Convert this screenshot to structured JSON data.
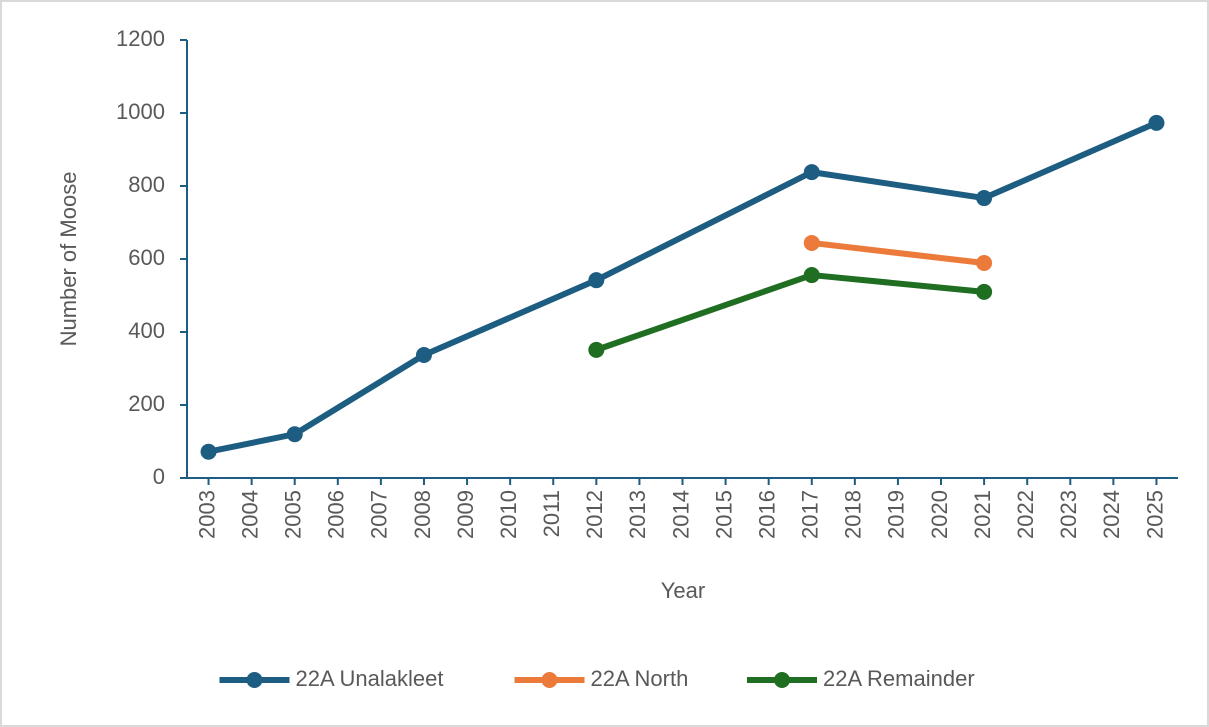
{
  "chart_data": {
    "type": "line",
    "y_label": "Number of Moose",
    "x_label": "Year",
    "xlim": [
      2002.5,
      2025.5
    ],
    "xticks": [
      2003,
      2004,
      2005,
      2006,
      2007,
      2008,
      2009,
      2010,
      2011,
      2012,
      2013,
      2014,
      2015,
      2016,
      2017,
      2018,
      2019,
      2020,
      2021,
      2022,
      2023,
      2024,
      2025
    ],
    "ylim": [
      0,
      1200
    ],
    "yticks": [
      0,
      200,
      400,
      600,
      800,
      1000,
      1200
    ],
    "grid": false,
    "legend": "bottom",
    "series": [
      {
        "name": "22A Unalakleet",
        "color": "#1d5d82",
        "x": [
          2003,
          2005,
          2008,
          2012,
          2017,
          2021,
          2025
        ],
        "values": [
          72,
          120,
          337,
          542,
          838,
          767,
          973
        ]
      },
      {
        "name": "22A North",
        "color": "#ec7a3b",
        "x": [
          2017,
          2021
        ],
        "values": [
          644,
          589
        ]
      },
      {
        "name": "22A Remainder",
        "color": "#1f6e22",
        "x": [
          2012,
          2017,
          2021
        ],
        "values": [
          351,
          556,
          510
        ]
      }
    ]
  }
}
